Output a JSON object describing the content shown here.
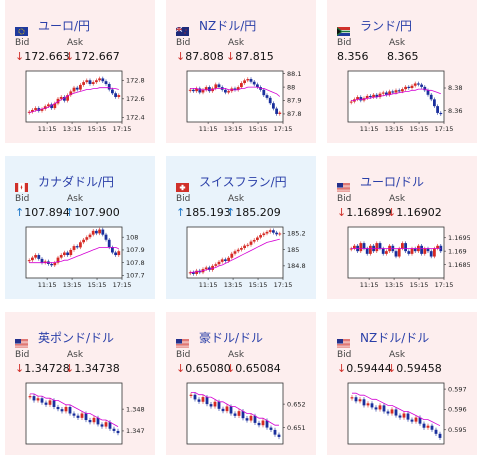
{
  "cards": [
    {
      "title": "ユーロ/円",
      "flag": "eu",
      "theme": "pink",
      "bid": "172.663",
      "ask": "172.667",
      "bid_arrow": "↓",
      "ask_arrow": "↓",
      "bid_dir": "down",
      "ask_dir": "down",
      "yticks": [
        "172.8",
        "172.6",
        "172.4"
      ],
      "xticks": [
        "11:15",
        "13:15",
        "15:15",
        "17:15"
      ],
      "chart_data": {
        "type": "candlestick",
        "series": [
          {
            "values": [
              172.46,
              172.48,
              172.5,
              172.47,
              172.49,
              172.52,
              172.54,
              172.5,
              172.55,
              172.6,
              172.62,
              172.58,
              172.64,
              172.68,
              172.72,
              172.7,
              172.75,
              172.78,
              172.8,
              172.76,
              172.78,
              172.8,
              172.82,
              172.79,
              172.76,
              172.7,
              172.66,
              172.62,
              172.64
            ]
          },
          {
            "values": [
              172.45,
              172.46,
              172.47,
              172.48,
              172.49,
              172.5,
              172.51,
              172.53,
              172.55,
              172.57,
              172.59,
              172.61,
              172.63,
              172.65,
              172.66,
              172.67,
              172.68,
              172.69,
              172.7,
              172.7,
              172.71,
              172.71,
              172.72,
              172.72,
              172.72,
              172.72,
              172.71,
              172.71,
              172.7
            ]
          }
        ],
        "ylim": [
          172.35,
          172.9
        ]
      }
    },
    {
      "title": "NZドル/円",
      "flag": "nz",
      "theme": "pink",
      "bid": "87.808",
      "ask": "87.815",
      "bid_arrow": "↓",
      "ask_arrow": "↓",
      "bid_dir": "down",
      "ask_dir": "down",
      "yticks": [
        "88.1",
        "88",
        "87.9",
        "87.8"
      ],
      "xticks": [
        "11:15",
        "13:15",
        "15:15",
        "17:15"
      ],
      "chart_data": {
        "type": "candlestick",
        "series": [
          {
            "values": [
              87.98,
              87.97,
              87.99,
              87.96,
              87.98,
              88.0,
              87.97,
              87.99,
              88.02,
              88.0,
              87.98,
              87.96,
              87.97,
              87.99,
              87.98,
              88.0,
              88.03,
              88.05,
              88.06,
              88.04,
              88.02,
              88.0,
              87.98,
              87.94,
              87.92,
              87.88,
              87.84,
              87.8,
              87.81
            ]
          },
          {
            "values": [
              87.99,
              87.99,
              87.99,
              87.98,
              87.98,
              87.98,
              87.98,
              87.98,
              87.99,
              87.99,
              87.99,
              87.99,
              87.98,
              87.98,
              87.98,
              87.98,
              87.99,
              87.99,
              88.0,
              88.0,
              88.0,
              88.0,
              87.99,
              87.99,
              87.98,
              87.97,
              87.96,
              87.95,
              87.93
            ]
          }
        ],
        "ylim": [
          87.74,
          88.12
        ]
      }
    },
    {
      "title": "ランド/円",
      "flag": "za",
      "theme": "pink",
      "bid": "8.356",
      "ask": "8.365",
      "bid_arrow": "",
      "ask_arrow": "",
      "bid_dir": "none",
      "ask_dir": "none",
      "yticks": [
        "8.38",
        "8.36"
      ],
      "xticks": [
        "11:15",
        "13:15",
        "15:15",
        "17:15"
      ],
      "chart_data": {
        "type": "candlestick",
        "series": [
          {
            "values": [
              8.368,
              8.37,
              8.372,
              8.369,
              8.371,
              8.373,
              8.372,
              8.374,
              8.372,
              8.375,
              8.376,
              8.374,
              8.377,
              8.376,
              8.378,
              8.377,
              8.379,
              8.381,
              8.38,
              8.382,
              8.384,
              8.383,
              8.381,
              8.378,
              8.374,
              8.37,
              8.364,
              8.358,
              8.357
            ]
          },
          {
            "values": [
              8.369,
              8.369,
              8.37,
              8.37,
              8.37,
              8.371,
              8.371,
              8.372,
              8.372,
              8.373,
              8.373,
              8.374,
              8.374,
              8.375,
              8.375,
              8.376,
              8.376,
              8.377,
              8.377,
              8.378,
              8.378,
              8.379,
              8.379,
              8.379,
              8.378,
              8.378,
              8.377,
              8.376,
              8.375
            ]
          }
        ],
        "ylim": [
          8.35,
          8.395
        ]
      }
    },
    {
      "title": "カナダドル/円",
      "flag": "ca",
      "theme": "blue",
      "bid": "107.894",
      "ask": "107.900",
      "bid_arrow": "↑",
      "ask_arrow": "↑",
      "bid_dir": "up",
      "ask_dir": "up",
      "yticks": [
        "108",
        "107.9",
        "107.8",
        "107.7"
      ],
      "xticks": [
        "11:15",
        "13:15",
        "15:15",
        "17:15"
      ],
      "chart_data": {
        "type": "candlestick",
        "series": [
          {
            "values": [
              107.82,
              107.84,
              107.86,
              107.83,
              107.8,
              107.81,
              107.79,
              107.78,
              107.8,
              107.84,
              107.86,
              107.88,
              107.86,
              107.9,
              107.93,
              107.92,
              107.96,
              107.98,
              108.0,
              108.02,
              108.05,
              108.03,
              108.06,
              108.02,
              107.98,
              107.92,
              107.88,
              107.86,
              107.89
            ]
          },
          {
            "values": [
              107.8,
              107.8,
              107.8,
              107.8,
              107.8,
              107.8,
              107.8,
              107.8,
              107.8,
              107.81,
              107.81,
              107.82,
              107.82,
              107.83,
              107.84,
              107.85,
              107.86,
              107.87,
              107.88,
              107.89,
              107.9,
              107.91,
              107.92,
              107.92,
              107.92,
              107.92,
              107.92,
              107.92,
              107.91
            ]
          }
        ],
        "ylim": [
          107.68,
          108.08
        ]
      }
    },
    {
      "title": "スイスフラン/円",
      "flag": "ch",
      "theme": "blue",
      "bid": "185.193",
      "ask": "185.209",
      "bid_arrow": "↑",
      "ask_arrow": "↑",
      "bid_dir": "up",
      "ask_dir": "up",
      "yticks": [
        "185.2",
        "185",
        "184.8"
      ],
      "xticks": [
        "11:15",
        "13:15",
        "15:15",
        "17:15"
      ],
      "chart_data": {
        "type": "candlestick",
        "series": [
          {
            "values": [
              184.72,
              184.7,
              184.74,
              184.72,
              184.76,
              184.78,
              184.75,
              184.8,
              184.82,
              184.85,
              184.88,
              184.86,
              184.9,
              184.95,
              184.98,
              185.0,
              185.02,
              185.05,
              185.06,
              185.1,
              185.12,
              185.15,
              185.18,
              185.2,
              185.22,
              185.24,
              185.21,
              185.19,
              185.2
            ]
          },
          {
            "values": [
              184.72,
              184.72,
              184.73,
              184.73,
              184.74,
              184.75,
              184.76,
              184.77,
              184.78,
              184.8,
              184.81,
              184.83,
              184.85,
              184.87,
              184.89,
              184.91,
              184.93,
              184.95,
              184.97,
              184.99,
              185.01,
              185.03,
              185.05,
              185.07,
              185.09,
              185.1,
              185.11,
              185.12,
              185.13
            ]
          }
        ],
        "ylim": [
          184.65,
          185.28
        ]
      }
    },
    {
      "title": "ユーロ/ドル",
      "flag": "us",
      "theme": "pink",
      "bid": "1.16899",
      "ask": "1.16902",
      "bid_arrow": "↓",
      "ask_arrow": "↓",
      "bid_dir": "down",
      "ask_dir": "down",
      "yticks": [
        "1.1695",
        "1.169",
        "1.1685"
      ],
      "xticks": [
        "11:15",
        "13:15",
        "15:15",
        "17:15"
      ],
      "chart_data": {
        "type": "candlestick",
        "series": [
          {
            "values": [
              1.1691,
              1.1692,
              1.169,
              1.1693,
              1.1691,
              1.1689,
              1.1692,
              1.169,
              1.1693,
              1.1691,
              1.1689,
              1.169,
              1.1692,
              1.169,
              1.1688,
              1.1691,
              1.1693,
              1.169,
              1.1689,
              1.1691,
              1.169,
              1.1692,
              1.1689,
              1.1691,
              1.169,
              1.1688,
              1.1691,
              1.1692,
              1.169
            ]
          },
          {
            "values": [
              1.1691,
              1.1691,
              1.1691,
              1.1691,
              1.1691,
              1.1691,
              1.1691,
              1.1691,
              1.1691,
              1.1691,
              1.1691,
              1.1691,
              1.1691,
              1.1691,
              1.1691,
              1.1691,
              1.1691,
              1.1691,
              1.1691,
              1.1691,
              1.1691,
              1.1691,
              1.1691,
              1.1691,
              1.1691,
              1.1691,
              1.1691,
              1.1691,
              1.1691
            ]
          }
        ],
        "ylim": [
          1.168,
          1.1699
        ]
      }
    },
    {
      "title": "英ポンド/ドル",
      "flag": "us",
      "theme": "pink",
      "bid": "1.34728",
      "ask": "1.34738",
      "bid_arrow": "↓",
      "ask_arrow": "↓",
      "bid_dir": "down",
      "ask_dir": "down",
      "yticks": [
        "1.348",
        "1.347"
      ],
      "xticks": [],
      "chart_data": {
        "type": "candlestick",
        "series": [
          {
            "values": [
              1.3486,
              1.3484,
              1.3485,
              1.3483,
              1.3482,
              1.3484,
              1.3481,
              1.348,
              1.3479,
              1.3481,
              1.3478,
              1.3477,
              1.3476,
              1.3478,
              1.3475,
              1.3474,
              1.3476,
              1.3473,
              1.3472,
              1.3474,
              1.3471,
              1.347,
              1.3469
            ]
          },
          {
            "values": [
              1.3487,
              1.3487,
              1.3486,
              1.3486,
              1.3485,
              1.3485,
              1.3484,
              1.3484,
              1.3483,
              1.3482,
              1.3482,
              1.3481,
              1.348,
              1.3479,
              1.3478,
              1.3478,
              1.3477,
              1.3476,
              1.3475,
              1.3475,
              1.3474,
              1.3473,
              1.3472
            ]
          }
        ],
        "ylim": [
          1.3464,
          1.3492
        ]
      }
    },
    {
      "title": "豪ドル/ドル",
      "flag": "us",
      "theme": "pink",
      "bid": "0.65080",
      "ask": "0.65084",
      "bid_arrow": "↓",
      "ask_arrow": "↓",
      "bid_dir": "down",
      "ask_dir": "down",
      "yticks": [
        "0.652",
        "0.651"
      ],
      "xticks": [],
      "chart_data": {
        "type": "candlestick",
        "series": [
          {
            "values": [
              0.6524,
              0.6522,
              0.6521,
              0.6523,
              0.652,
              0.6519,
              0.6521,
              0.6518,
              0.6517,
              0.6519,
              0.6516,
              0.6515,
              0.6517,
              0.6514,
              0.6513,
              0.6515,
              0.6512,
              0.6511,
              0.6513,
              0.651,
              0.6509,
              0.6507,
              0.6506
            ]
          },
          {
            "values": [
              0.6525,
              0.6525,
              0.6524,
              0.6524,
              0.6523,
              0.6523,
              0.6522,
              0.6521,
              0.6521,
              0.652,
              0.6519,
              0.6519,
              0.6518,
              0.6517,
              0.6516,
              0.6516,
              0.6515,
              0.6514,
              0.6514,
              0.6513,
              0.6512,
              0.6511,
              0.6511
            ]
          }
        ],
        "ylim": [
          0.6503,
          0.6529
        ]
      }
    },
    {
      "title": "NZドル/ドル",
      "flag": "us",
      "theme": "pink",
      "bid": "0.59444",
      "ask": "0.59458",
      "bid_arrow": "↓",
      "ask_arrow": "↓",
      "bid_dir": "down",
      "ask_dir": "down",
      "yticks": [
        "0.597",
        "0.596",
        "0.595"
      ],
      "xticks": [],
      "chart_data": {
        "type": "candlestick",
        "series": [
          {
            "values": [
              0.5966,
              0.5964,
              0.5965,
              0.5962,
              0.5963,
              0.5961,
              0.596,
              0.5962,
              0.5959,
              0.5958,
              0.596,
              0.5957,
              0.5956,
              0.5958,
              0.5955,
              0.5954,
              0.5956,
              0.5953,
              0.5951,
              0.5952,
              0.595,
              0.5948,
              0.5946
            ]
          },
          {
            "values": [
              0.5968,
              0.5968,
              0.5967,
              0.5967,
              0.5966,
              0.5965,
              0.5965,
              0.5964,
              0.5963,
              0.5962,
              0.5962,
              0.5961,
              0.596,
              0.5959,
              0.5959,
              0.5958,
              0.5957,
              0.5956,
              0.5955,
              0.5955,
              0.5954,
              0.5953,
              0.5952
            ]
          }
        ],
        "ylim": [
          0.5943,
          0.5973
        ]
      }
    }
  ],
  "colors": {
    "up": "#d62a24",
    "down": "#1a2f9c",
    "ma": "#d400d4",
    "arrow_down": "#d0302a",
    "arrow_up": "#1f77c8",
    "title": "#2a3fa8"
  }
}
